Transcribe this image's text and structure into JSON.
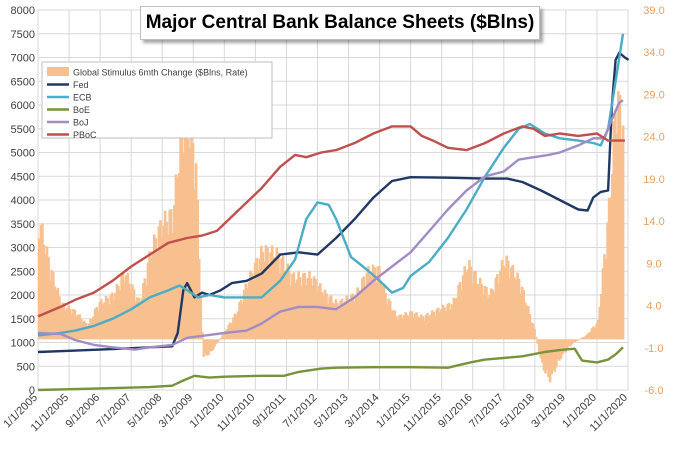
{
  "chart_data": {
    "type": "line",
    "title": "Major Central Bank Balance Sheets ($Blns)",
    "left_axis": {
      "ylim": [
        0,
        8000
      ],
      "ticks": [
        0,
        500,
        1000,
        1500,
        2000,
        2500,
        3000,
        3500,
        4000,
        4500,
        5000,
        5500,
        6000,
        6500,
        7000,
        7500,
        8000
      ]
    },
    "right_axis": {
      "ylim": [
        -6.0,
        39.0
      ],
      "ticks": [
        "-6.0",
        "-1.0",
        "4.0",
        "9.0",
        "14.0",
        "19.0",
        "24.0",
        "29.0",
        "34.0",
        "39.0"
      ],
      "color": "#e8a060"
    },
    "x_axis": {
      "range": [
        "2005-01-01",
        "2020-11-01"
      ],
      "tick_labels": [
        "1/1/2005",
        "11/1/2005",
        "9/1/2006",
        "7/1/2007",
        "5/1/2008",
        "3/1/2009",
        "1/1/2010",
        "11/1/2010",
        "9/1/2011",
        "7/1/2012",
        "5/1/2013",
        "3/1/2014",
        "1/1/2015",
        "11/1/2015",
        "9/1/2016",
        "7/1/2017",
        "5/1/2018",
        "3/1/2019",
        "1/1/2020",
        "11/1/2020"
      ]
    },
    "grid": true,
    "legend_position": "top-left",
    "bars": {
      "name": "Global Stimulus 6mth Change ($Blns, Rate)",
      "color": "#f8c08e",
      "axis": "right",
      "points": [
        [
          2005.0,
          13.5
        ],
        [
          2005.3,
          8
        ],
        [
          2005.6,
          4
        ],
        [
          2006.0,
          3
        ],
        [
          2006.3,
          1.5
        ],
        [
          2006.6,
          4
        ],
        [
          2007.0,
          5
        ],
        [
          2007.3,
          7.5
        ],
        [
          2007.7,
          4
        ],
        [
          2008.0,
          10
        ],
        [
          2008.3,
          13
        ],
        [
          2008.6,
          14
        ],
        [
          2008.8,
          23
        ],
        [
          2008.9,
          26
        ],
        [
          2009.05,
          23
        ],
        [
          2009.2,
          20
        ],
        [
          2009.4,
          -2
        ],
        [
          2009.6,
          -1.5
        ],
        [
          2010.0,
          1
        ],
        [
          2010.3,
          3
        ],
        [
          2010.6,
          6.5
        ],
        [
          2011.0,
          10
        ],
        [
          2011.4,
          9.5
        ],
        [
          2011.8,
          7
        ],
        [
          2012.3,
          7
        ],
        [
          2012.7,
          5
        ],
        [
          2013.0,
          4
        ],
        [
          2013.5,
          5
        ],
        [
          2013.8,
          7.5
        ],
        [
          2014.1,
          8
        ],
        [
          2014.3,
          5
        ],
        [
          2014.6,
          2.5
        ],
        [
          2015.0,
          3
        ],
        [
          2015.3,
          2.5
        ],
        [
          2015.8,
          3.5
        ],
        [
          2016.1,
          4
        ],
        [
          2016.5,
          8.5
        ],
        [
          2016.8,
          6.5
        ],
        [
          2017.1,
          5
        ],
        [
          2017.5,
          9
        ],
        [
          2017.9,
          6.5
        ],
        [
          2018.3,
          1
        ],
        [
          2018.5,
          -3
        ],
        [
          2018.7,
          -4.5
        ],
        [
          2019.0,
          -2
        ],
        [
          2019.3,
          -0.5
        ],
        [
          2019.7,
          0.5
        ],
        [
          2020.0,
          2
        ],
        [
          2020.3,
          15
        ],
        [
          2020.5,
          28
        ],
        [
          2020.6,
          25
        ]
      ]
    },
    "series": [
      {
        "name": "Fed",
        "color": "#1f3864",
        "axis": "left",
        "points": [
          [
            2005.0,
            800
          ],
          [
            2006.0,
            830
          ],
          [
            2007.0,
            860
          ],
          [
            2008.0,
            900
          ],
          [
            2008.6,
            920
          ],
          [
            2008.75,
            1200
          ],
          [
            2008.9,
            2100
          ],
          [
            2009.0,
            2250
          ],
          [
            2009.2,
            1950
          ],
          [
            2009.4,
            2050
          ],
          [
            2009.6,
            2000
          ],
          [
            2009.9,
            2100
          ],
          [
            2010.2,
            2250
          ],
          [
            2010.6,
            2300
          ],
          [
            2011.0,
            2450
          ],
          [
            2011.5,
            2850
          ],
          [
            2012.0,
            2900
          ],
          [
            2012.5,
            2850
          ],
          [
            2013.0,
            3200
          ],
          [
            2013.5,
            3600
          ],
          [
            2014.0,
            4050
          ],
          [
            2014.5,
            4400
          ],
          [
            2015.0,
            4480
          ],
          [
            2016.0,
            4470
          ],
          [
            2017.0,
            4450
          ],
          [
            2017.6,
            4450
          ],
          [
            2018.0,
            4380
          ],
          [
            2018.5,
            4200
          ],
          [
            2019.0,
            4000
          ],
          [
            2019.5,
            3800
          ],
          [
            2019.75,
            3780
          ],
          [
            2019.9,
            4050
          ],
          [
            2020.1,
            4170
          ],
          [
            2020.3,
            4200
          ],
          [
            2020.4,
            6000
          ],
          [
            2020.5,
            6950
          ],
          [
            2020.6,
            7100
          ],
          [
            2020.75,
            7000
          ],
          [
            2020.85,
            6950
          ]
        ]
      },
      {
        "name": "ECB",
        "color": "#4bacc6",
        "axis": "left",
        "points": [
          [
            2005.0,
            1150
          ],
          [
            2005.6,
            1200
          ],
          [
            2006.0,
            1250
          ],
          [
            2006.5,
            1350
          ],
          [
            2007.0,
            1500
          ],
          [
            2007.5,
            1700
          ],
          [
            2008.0,
            1950
          ],
          [
            2008.5,
            2100
          ],
          [
            2008.8,
            2200
          ],
          [
            2009.0,
            2100
          ],
          [
            2009.3,
            1950
          ],
          [
            2009.6,
            2000
          ],
          [
            2010.0,
            1950
          ],
          [
            2010.5,
            1950
          ],
          [
            2011.0,
            1950
          ],
          [
            2011.5,
            2300
          ],
          [
            2011.9,
            2750
          ],
          [
            2012.2,
            3600
          ],
          [
            2012.5,
            3950
          ],
          [
            2012.8,
            3900
          ],
          [
            2013.0,
            3600
          ],
          [
            2013.4,
            2800
          ],
          [
            2013.8,
            2550
          ],
          [
            2014.1,
            2350
          ],
          [
            2014.5,
            2050
          ],
          [
            2014.8,
            2150
          ],
          [
            2015.0,
            2400
          ],
          [
            2015.5,
            2700
          ],
          [
            2016.0,
            3200
          ],
          [
            2016.5,
            3800
          ],
          [
            2017.0,
            4500
          ],
          [
            2017.5,
            5100
          ],
          [
            2017.9,
            5500
          ],
          [
            2018.2,
            5600
          ],
          [
            2018.6,
            5400
          ],
          [
            2019.0,
            5300
          ],
          [
            2019.5,
            5250
          ],
          [
            2019.9,
            5200
          ],
          [
            2020.1,
            5150
          ],
          [
            2020.3,
            5500
          ],
          [
            2020.5,
            6500
          ],
          [
            2020.7,
            7500
          ]
        ]
      },
      {
        "name": "BoE",
        "color": "#77933c",
        "axis": "left",
        "points": [
          [
            2005.0,
            0
          ],
          [
            2006.0,
            20
          ],
          [
            2007.0,
            40
          ],
          [
            2008.0,
            60
          ],
          [
            2008.6,
            90
          ],
          [
            2008.9,
            200
          ],
          [
            2009.2,
            300
          ],
          [
            2009.6,
            260
          ],
          [
            2010.0,
            280
          ],
          [
            2011.0,
            300
          ],
          [
            2011.6,
            300
          ],
          [
            2012.0,
            380
          ],
          [
            2012.6,
            450
          ],
          [
            2013.0,
            470
          ],
          [
            2014.0,
            480
          ],
          [
            2015.0,
            480
          ],
          [
            2016.0,
            470
          ],
          [
            2016.6,
            580
          ],
          [
            2017.0,
            640
          ],
          [
            2018.0,
            710
          ],
          [
            2018.6,
            800
          ],
          [
            2019.0,
            840
          ],
          [
            2019.4,
            870
          ],
          [
            2019.6,
            620
          ],
          [
            2020.0,
            580
          ],
          [
            2020.3,
            640
          ],
          [
            2020.5,
            750
          ],
          [
            2020.7,
            900
          ]
        ]
      },
      {
        "name": "BoJ",
        "color": "#a28cc6",
        "axis": "left",
        "points": [
          [
            2005.0,
            1200
          ],
          [
            2005.6,
            1180
          ],
          [
            2006.0,
            1050
          ],
          [
            2006.5,
            950
          ],
          [
            2007.0,
            900
          ],
          [
            2007.6,
            850
          ],
          [
            2008.0,
            900
          ],
          [
            2008.6,
            950
          ],
          [
            2009.0,
            1100
          ],
          [
            2009.5,
            1150
          ],
          [
            2010.0,
            1200
          ],
          [
            2010.6,
            1250
          ],
          [
            2011.0,
            1400
          ],
          [
            2011.5,
            1650
          ],
          [
            2012.0,
            1750
          ],
          [
            2012.5,
            1750
          ],
          [
            2013.0,
            1700
          ],
          [
            2013.5,
            1950
          ],
          [
            2014.0,
            2300
          ],
          [
            2014.5,
            2600
          ],
          [
            2015.0,
            2900
          ],
          [
            2015.5,
            3350
          ],
          [
            2016.0,
            3800
          ],
          [
            2016.5,
            4200
          ],
          [
            2017.0,
            4500
          ],
          [
            2017.5,
            4600
          ],
          [
            2017.9,
            4850
          ],
          [
            2018.3,
            4900
          ],
          [
            2018.7,
            4950
          ],
          [
            2019.0,
            5000
          ],
          [
            2019.5,
            5150
          ],
          [
            2019.9,
            5300
          ],
          [
            2020.2,
            5300
          ],
          [
            2020.4,
            5700
          ],
          [
            2020.6,
            6050
          ],
          [
            2020.7,
            6100
          ]
        ]
      },
      {
        "name": "PBoC",
        "color": "#c0504d",
        "axis": "left",
        "points": [
          [
            2005.0,
            1550
          ],
          [
            2005.6,
            1750
          ],
          [
            2006.0,
            1900
          ],
          [
            2006.5,
            2050
          ],
          [
            2007.0,
            2300
          ],
          [
            2007.5,
            2600
          ],
          [
            2008.0,
            2850
          ],
          [
            2008.5,
            3100
          ],
          [
            2009.0,
            3200
          ],
          [
            2009.4,
            3250
          ],
          [
            2009.8,
            3350
          ],
          [
            2010.2,
            3650
          ],
          [
            2010.6,
            3950
          ],
          [
            2011.0,
            4250
          ],
          [
            2011.5,
            4700
          ],
          [
            2011.9,
            4950
          ],
          [
            2012.2,
            4900
          ],
          [
            2012.6,
            5000
          ],
          [
            2013.0,
            5050
          ],
          [
            2013.5,
            5200
          ],
          [
            2014.0,
            5400
          ],
          [
            2014.5,
            5550
          ],
          [
            2015.0,
            5550
          ],
          [
            2015.3,
            5350
          ],
          [
            2015.6,
            5250
          ],
          [
            2016.0,
            5100
          ],
          [
            2016.5,
            5050
          ],
          [
            2017.0,
            5200
          ],
          [
            2017.5,
            5400
          ],
          [
            2018.0,
            5550
          ],
          [
            2018.3,
            5500
          ],
          [
            2018.6,
            5350
          ],
          [
            2019.0,
            5400
          ],
          [
            2019.5,
            5350
          ],
          [
            2020.0,
            5400
          ],
          [
            2020.3,
            5250
          ],
          [
            2020.5,
            5250
          ],
          [
            2020.75,
            5250
          ]
        ]
      }
    ]
  }
}
